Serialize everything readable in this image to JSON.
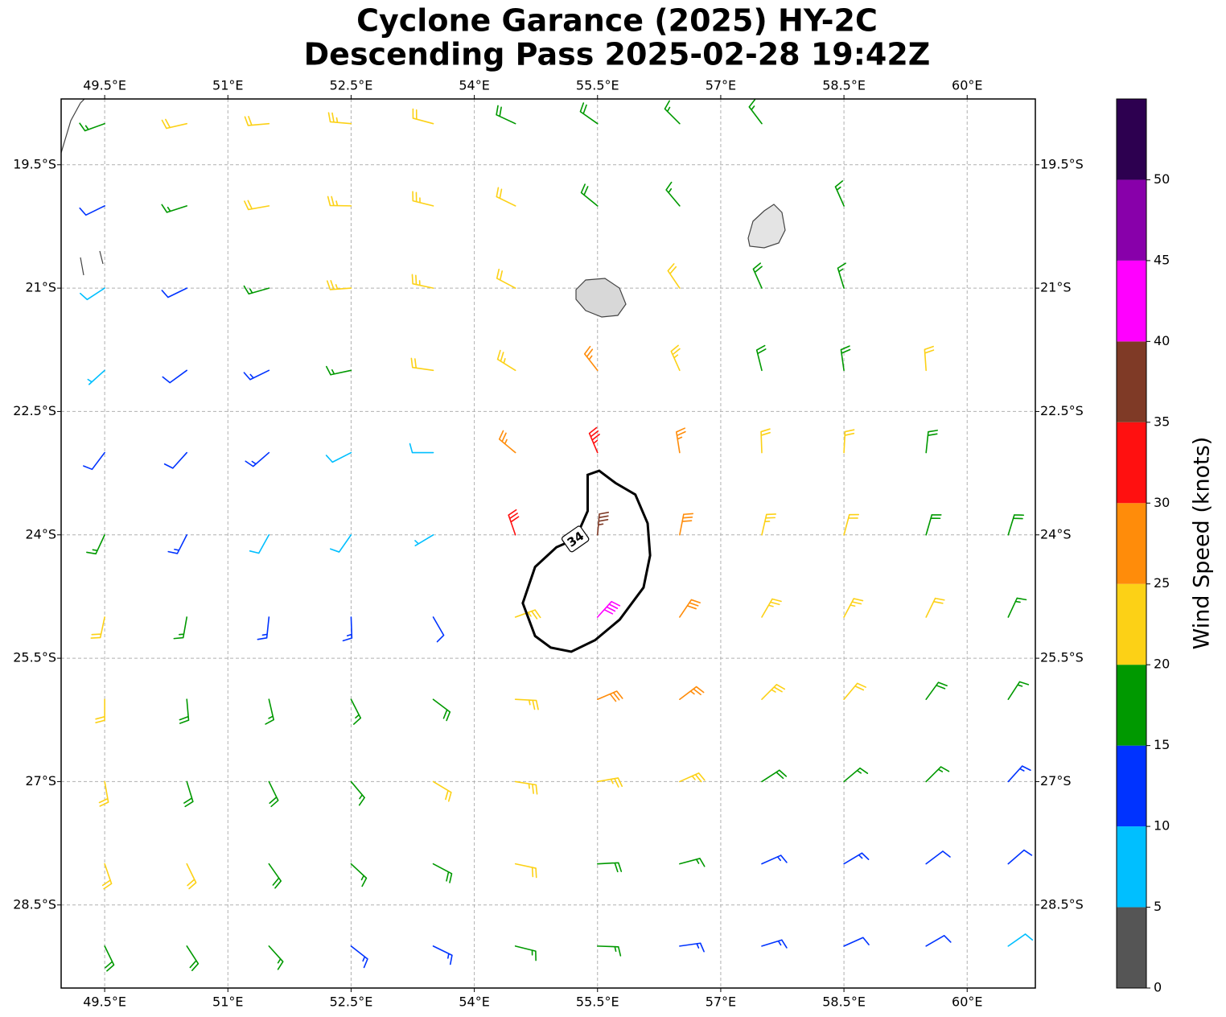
{
  "chart_data": {
    "type": "barbs",
    "title": "Cyclone Garance (2025) HY-2C",
    "subtitle": "Descending Pass 2025-02-28 19:42Z",
    "xlim": [
      48.97,
      60.83
    ],
    "ylim": [
      -29.51,
      -18.7
    ],
    "xticks": [
      {
        "value": 49.5,
        "label": "49.5°E"
      },
      {
        "value": 51,
        "label": "51°E"
      },
      {
        "value": 52.5,
        "label": "52.5°E"
      },
      {
        "value": 54,
        "label": "54°E"
      },
      {
        "value": 55.5,
        "label": "55.5°E"
      },
      {
        "value": 57,
        "label": "57°E"
      },
      {
        "value": 58.5,
        "label": "58.5°E"
      },
      {
        "value": 60,
        "label": "60°E"
      }
    ],
    "yticks": [
      {
        "value": -19.5,
        "label": "19.5°S"
      },
      {
        "value": -21,
        "label": "21°S"
      },
      {
        "value": -22.5,
        "label": "22.5°S"
      },
      {
        "value": -24,
        "label": "24°S"
      },
      {
        "value": -25.5,
        "label": "25.5°S"
      },
      {
        "value": -27,
        "label": "27°S"
      },
      {
        "value": -28.5,
        "label": "28.5°S"
      }
    ],
    "grid": true,
    "barbs": {
      "lons": [
        49.5,
        50.5,
        51.5,
        52.5,
        53.5,
        54.5,
        55.5,
        56.5,
        57.5,
        58.5,
        59.5,
        60.5
      ],
      "lats": [
        -19,
        -20,
        -21,
        -22,
        -23,
        -24,
        -25,
        -26,
        -27,
        -28,
        -29
      ],
      "speed": [
        [
          17,
          22,
          22,
          23,
          22,
          18,
          18,
          17,
          16,
          null,
          null,
          null
        ],
        [
          12,
          17,
          22,
          24,
          24,
          22,
          18,
          17,
          null,
          16,
          null,
          null
        ],
        [
          8,
          12,
          17,
          23,
          23,
          22,
          null,
          21,
          18,
          17,
          null,
          null
        ],
        [
          7,
          12,
          14,
          17,
          22,
          24,
          27,
          23,
          18,
          18,
          21,
          null
        ],
        [
          11,
          12,
          13,
          9,
          8,
          27,
          33,
          27,
          22,
          21,
          18,
          null
        ],
        [
          16,
          13,
          9,
          8,
          7,
          31,
          37,
          28,
          24,
          22,
          19,
          18
        ],
        [
          21,
          17,
          13,
          13,
          12,
          23,
          42,
          29,
          24,
          23,
          21,
          17
        ],
        [
          22,
          19,
          17,
          16,
          18,
          24,
          28,
          27,
          24,
          22,
          18,
          17
        ],
        [
          22,
          19,
          18,
          17,
          21,
          23,
          24,
          24,
          19,
          17,
          16,
          13
        ],
        [
          22,
          21,
          18,
          17,
          19,
          22,
          19,
          17,
          14,
          13,
          12,
          12
        ],
        [
          19,
          18,
          17,
          14,
          13,
          16,
          16,
          14,
          13,
          12,
          12,
          9
        ]
      ],
      "direction": [
        [
          250,
          257,
          265,
          275,
          285,
          295,
          305,
          315,
          323,
          null,
          null,
          null
        ],
        [
          244,
          252,
          260,
          271,
          284,
          296,
          309,
          320,
          null,
          336,
          null,
          null
        ],
        [
          237,
          244,
          254,
          266,
          282,
          298,
          null,
          326,
          336,
          343,
          null,
          null
        ],
        [
          228,
          234,
          244,
          258,
          278,
          302,
          322,
          336,
          346,
          352,
          356,
          null
        ],
        [
          217,
          222,
          229,
          243,
          270,
          310,
          337,
          351,
          358,
          3,
          6,
          null
        ],
        [
          205,
          207,
          209,
          215,
          239,
          341,
          5,
          11,
          13,
          15,
          16,
          17
        ],
        [
          192,
          190,
          186,
          178,
          150,
          70,
          42,
          34,
          30,
          28,
          26,
          25
        ],
        [
          180,
          175,
          167,
          153,
          127,
          93,
          67,
          53,
          45,
          40,
          36,
          33
        ],
        [
          170,
          163,
          154,
          140,
          121,
          99,
          80,
          66,
          57,
          50,
          45,
          42
        ],
        [
          161,
          154,
          145,
          133,
          118,
          102,
          87,
          75,
          66,
          59,
          53,
          49
        ],
        [
          154,
          147,
          138,
          128,
          116,
          104,
          92,
          82,
          73,
          66,
          60,
          55
        ]
      ]
    },
    "contour": {
      "level": 34,
      "lon": [
        55.38,
        55.38,
        55.52,
        55.72,
        55.96,
        56.11,
        56.14,
        56.06,
        55.77,
        55.47,
        55.18,
        54.93,
        54.74,
        54.59,
        54.74,
        55.0,
        55.23
      ],
      "lat": [
        -23.71,
        -23.27,
        -23.22,
        -23.37,
        -23.51,
        -23.86,
        -24.25,
        -24.64,
        -25.03,
        -25.28,
        -25.42,
        -25.37,
        -25.23,
        -24.83,
        -24.39,
        -24.15,
        -24.05
      ]
    },
    "colorbar": {
      "label": "Wind Speed (knots)",
      "bounds": [
        0,
        5,
        10,
        15,
        20,
        25,
        30,
        35,
        40,
        45,
        50,
        55
      ],
      "colors": [
        "#555555",
        "#00bfff",
        "#0033ff",
        "#009900",
        "#fcd116",
        "#ff8c0a",
        "#ff1010",
        "#7f3a26",
        "#ff00ff",
        "#8800aa",
        "#2d0050"
      ],
      "ticks": [
        0,
        5,
        10,
        15,
        20,
        25,
        30,
        35,
        40,
        45,
        50
      ]
    }
  }
}
